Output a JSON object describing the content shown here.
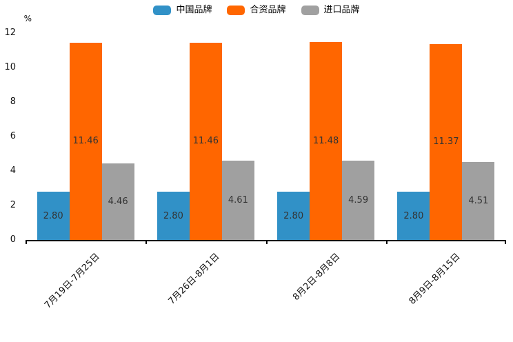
{
  "chart_data": {
    "type": "bar",
    "title": "",
    "xlabel": "",
    "ylabel": "%",
    "categories": [
      "7月19日-7月25日",
      "7月26日-8月1日",
      "8月2日-8月8日",
      "8月9日-8月15日"
    ],
    "series": [
      {
        "name": "中国品牌",
        "color": "#3191C7",
        "values": [
          2.8,
          2.8,
          2.8,
          2.8
        ]
      },
      {
        "name": "合资品牌",
        "color": "#FF6600",
        "values": [
          11.46,
          11.46,
          11.48,
          11.37
        ]
      },
      {
        "name": "进口品牌",
        "color": "#A0A0A0",
        "values": [
          4.46,
          4.61,
          4.59,
          4.51
        ]
      }
    ],
    "ylim": [
      0,
      12
    ],
    "yticks": [
      0,
      2,
      4,
      6,
      8,
      10,
      12
    ],
    "grid": false,
    "legend_position": "top",
    "value_labels_inside_bars": true,
    "value_label_decimals": 2
  },
  "style": {
    "axis_color": "#000000",
    "tick_label_color": "#111111",
    "value_label_color": "#333333",
    "background": "#FFFFFF"
  }
}
